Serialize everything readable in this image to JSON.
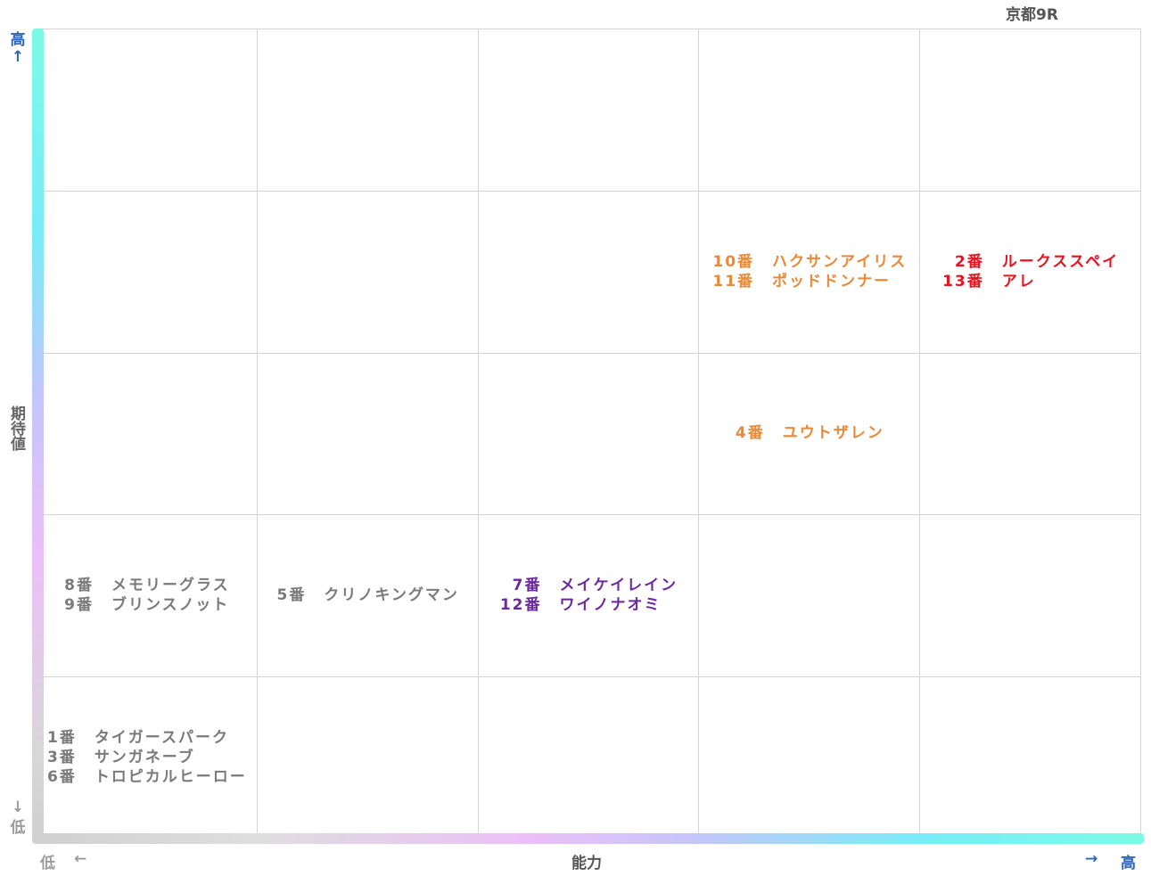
{
  "title": "京都9R",
  "axes": {
    "x_label": "能力",
    "y_label": "期待値",
    "high": "高",
    "low": "低",
    "arrow_right": "→",
    "arrow_left": "←",
    "arrow_up": "↑",
    "arrow_down": "↓"
  },
  "colors": {
    "gray": "#7a7a7a",
    "purple": "#6a2a9c",
    "orange": "#e98a3a",
    "red": "#e8131f"
  },
  "chart_data": {
    "type": "table",
    "columns": 5,
    "rows": 5,
    "xlabel": "能力",
    "ylabel": "期待値",
    "cells": [
      {
        "col": 1,
        "row": 1,
        "color": "#7a7a7a",
        "entries": [
          {
            "num": "1番",
            "name": "タイガースパーク"
          },
          {
            "num": "3番",
            "name": "サンガネーブ"
          },
          {
            "num": "6番",
            "name": "トロピカルヒーロー"
          }
        ]
      },
      {
        "col": 1,
        "row": 2,
        "color": "#7a7a7a",
        "entries": [
          {
            "num": "8番",
            "name": "メモリーグラス"
          },
          {
            "num": "9番",
            "name": "ブリンスノット"
          }
        ]
      },
      {
        "col": 2,
        "row": 2,
        "color": "#7a7a7a",
        "entries": [
          {
            "num": "5番",
            "name": "クリノキングマン"
          }
        ]
      },
      {
        "col": 3,
        "row": 2,
        "color": "#6a2a9c",
        "entries": [
          {
            "num": "7番",
            "name": "メイケイレイン"
          },
          {
            "num": "12番",
            "name": "ワイノナオミ"
          }
        ]
      },
      {
        "col": 4,
        "row": 3,
        "color": "#e98a3a",
        "entries": [
          {
            "num": "4番",
            "name": "ユウトザレン"
          }
        ]
      },
      {
        "col": 4,
        "row": 4,
        "color": "#e98a3a",
        "entries": [
          {
            "num": "10番",
            "name": "ハクサンアイリス"
          },
          {
            "num": "11番",
            "name": "ポッドドンナー"
          }
        ]
      },
      {
        "col": 5,
        "row": 4,
        "color": "#e8131f",
        "entries": [
          {
            "num": "2番",
            "name": "ルークススペイ"
          },
          {
            "num": "13番",
            "name": "アレ"
          }
        ]
      }
    ]
  }
}
